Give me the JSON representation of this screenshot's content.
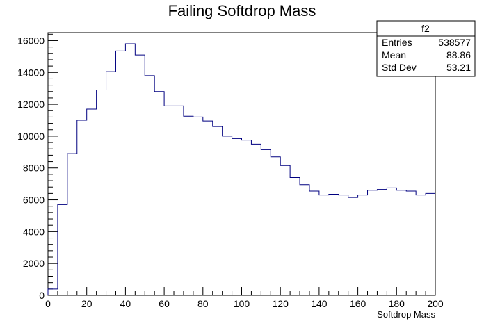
{
  "chart_data": {
    "type": "histogram",
    "title": "Failing Softdrop Mass",
    "xlabel": "Softdrop Mass",
    "ylabel": "",
    "xlim": [
      0,
      200
    ],
    "ylim": [
      0,
      16500
    ],
    "x_ticks": [
      0,
      20,
      40,
      60,
      80,
      100,
      120,
      140,
      160,
      180,
      200
    ],
    "y_ticks": [
      0,
      2000,
      4000,
      6000,
      8000,
      10000,
      12000,
      14000,
      16000
    ],
    "bin_edges": [
      0,
      5,
      10,
      15,
      20,
      25,
      30,
      35,
      40,
      45,
      50,
      55,
      60,
      65,
      70,
      75,
      80,
      85,
      90,
      95,
      100,
      105,
      110,
      115,
      120,
      125,
      130,
      135,
      140,
      145,
      150,
      155,
      160,
      165,
      170,
      175,
      180,
      185,
      190,
      195,
      200
    ],
    "values": [
      400,
      5700,
      8900,
      11000,
      11700,
      12900,
      14050,
      15350,
      15800,
      15100,
      13800,
      12800,
      11900,
      11900,
      11250,
      11200,
      10950,
      10600,
      10000,
      9850,
      9750,
      9500,
      9150,
      8700,
      8150,
      7400,
      6950,
      6550,
      6300,
      6350,
      6300,
      6150,
      6300,
      6600,
      6650,
      6750,
      6600,
      6550,
      6300,
      6400
    ],
    "line_color": "#000080",
    "grid": false,
    "stats_box": {
      "title": "f2",
      "rows": [
        {
          "label": "Entries",
          "value": "538577"
        },
        {
          "label": "Mean",
          "value": "88.86"
        },
        {
          "label": "Std Dev",
          "value": "53.21"
        }
      ]
    }
  }
}
